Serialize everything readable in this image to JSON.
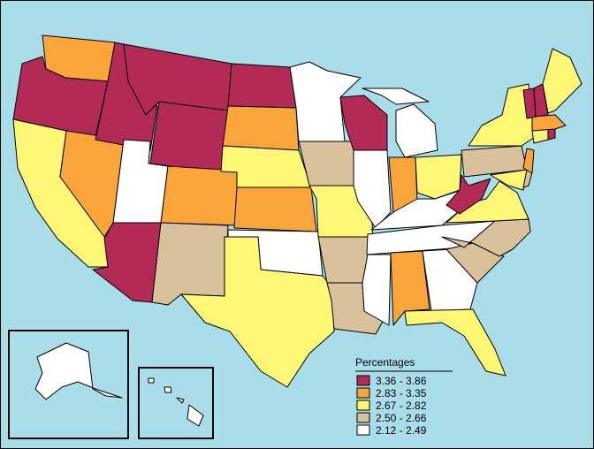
{
  "colors": {
    "water": "#a8dde9",
    "bin1": "#b22a55",
    "bin2": "#f9a53a",
    "bin3": "#fdf775",
    "bin4": "#d9c19b",
    "bin5": "#ffffff"
  },
  "legend": {
    "title": "Percentages",
    "bins": [
      {
        "label": "3.36 - 3.86",
        "color": "#b22a55"
      },
      {
        "label": "2.83 - 3.35",
        "color": "#f9a53a"
      },
      {
        "label": "2.67 - 2.82",
        "color": "#fdf775"
      },
      {
        "label": "2.50 - 2.66",
        "color": "#d9c19b"
      },
      {
        "label": "2.12 - 2.49",
        "color": "#ffffff"
      }
    ]
  },
  "states": {
    "WA": "bin2",
    "OR": "bin1",
    "CA": "bin3",
    "ID": "bin1",
    "NV": "bin2",
    "MT": "bin1",
    "WY": "bin1",
    "UT": "bin5",
    "AZ": "bin1",
    "CO": "bin2",
    "NM": "bin4",
    "ND": "bin1",
    "SD": "bin2",
    "NE": "bin3",
    "KS": "bin2",
    "OK": "bin5",
    "TX": "bin3",
    "MN": "bin5",
    "IA": "bin4",
    "MO": "bin3",
    "AR": "bin4",
    "LA": "bin4",
    "WI": "bin1",
    "IL": "bin5",
    "MI": "bin5",
    "IN": "bin2",
    "OH": "bin3",
    "KY": "bin5",
    "TN": "bin5",
    "MS": "bin5",
    "AL": "bin2",
    "GA": "bin5",
    "FL": "bin3",
    "SC": "bin4",
    "NC": "bin4",
    "VA": "bin3",
    "WV": "bin1",
    "PA": "bin4",
    "NY": "bin3",
    "MD": "bin3",
    "DE": "bin4",
    "NJ": "bin2",
    "CT": "bin3",
    "RI": "bin1",
    "MA": "bin2",
    "VT": "bin1",
    "NH": "bin1",
    "ME": "bin3",
    "AK": "bin5",
    "HI": "bin5"
  }
}
